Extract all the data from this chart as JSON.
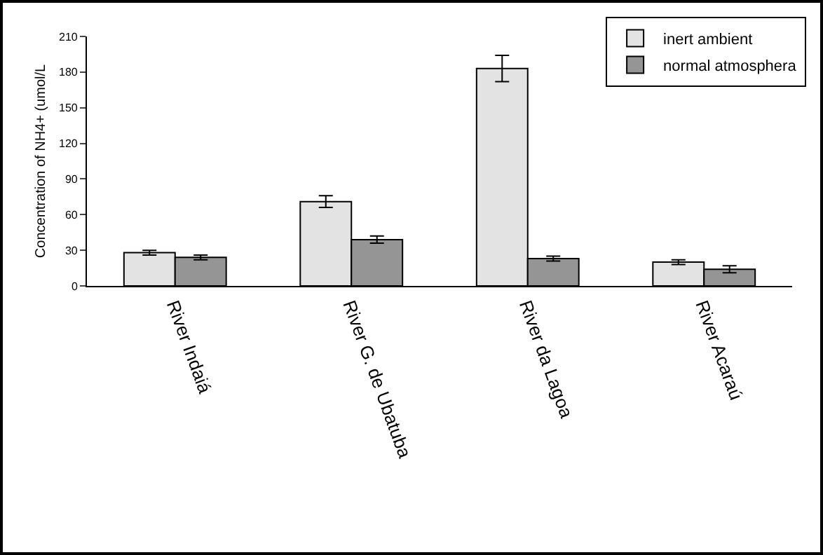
{
  "chart_data": {
    "type": "bar",
    "ylabel": "Concentration of NH4+ (umol/L",
    "categories": [
      "River Indaiá",
      "River G. de Ubatuba",
      "River da Lagoa",
      "River Acaraú"
    ],
    "series": [
      {
        "name": "inert ambient",
        "color": "#e3e3e3",
        "values": [
          28,
          71,
          183,
          20
        ],
        "errors": [
          2,
          5,
          11,
          2
        ]
      },
      {
        "name": "normal atmosphera",
        "color": "#959595",
        "values": [
          24,
          39,
          23,
          14
        ],
        "errors": [
          2,
          3,
          2,
          3
        ]
      }
    ],
    "ylim": [
      0,
      210
    ],
    "yticks": [
      0,
      30,
      60,
      90,
      120,
      150,
      180,
      210
    ],
    "grid": false,
    "legend": "top right"
  }
}
